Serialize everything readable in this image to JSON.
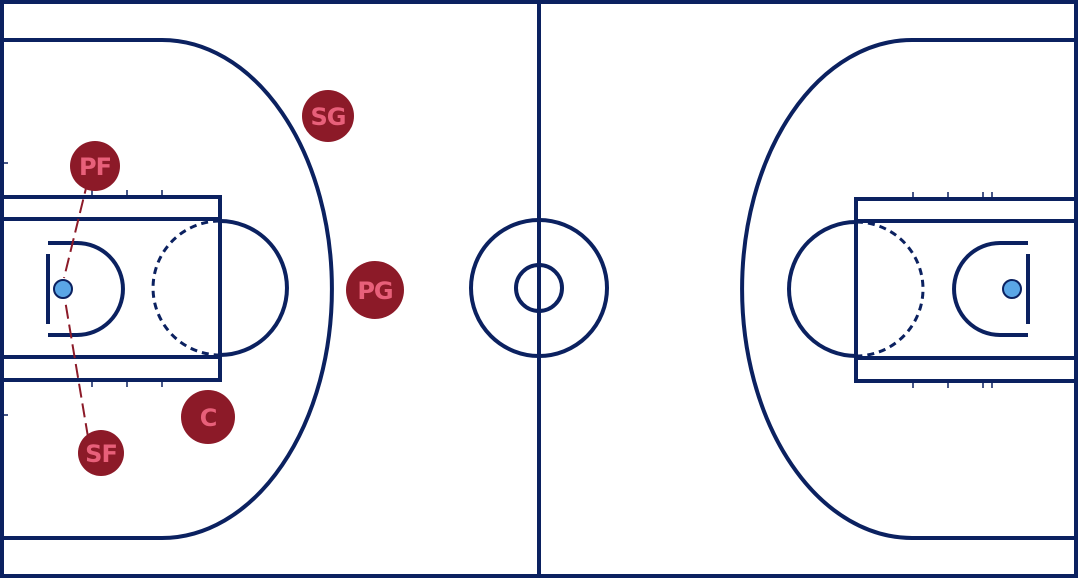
{
  "court": {
    "line_color": "#0b2160",
    "rim_color": "#5aa6e6",
    "background": "#ffffff"
  },
  "players": [
    {
      "id": "pf",
      "label": "PF"
    },
    {
      "id": "sg",
      "label": "SG"
    },
    {
      "id": "pg",
      "label": "PG"
    },
    {
      "id": "c",
      "label": "C"
    },
    {
      "id": "sf",
      "label": "SF"
    }
  ],
  "player_style": {
    "fill": "#8c1a28",
    "text_color": "#e8607a"
  },
  "play": {
    "pass_lines": [
      {
        "from": "pf",
        "to": "basket-left"
      },
      {
        "from": "sf",
        "to": "basket-left"
      }
    ]
  }
}
